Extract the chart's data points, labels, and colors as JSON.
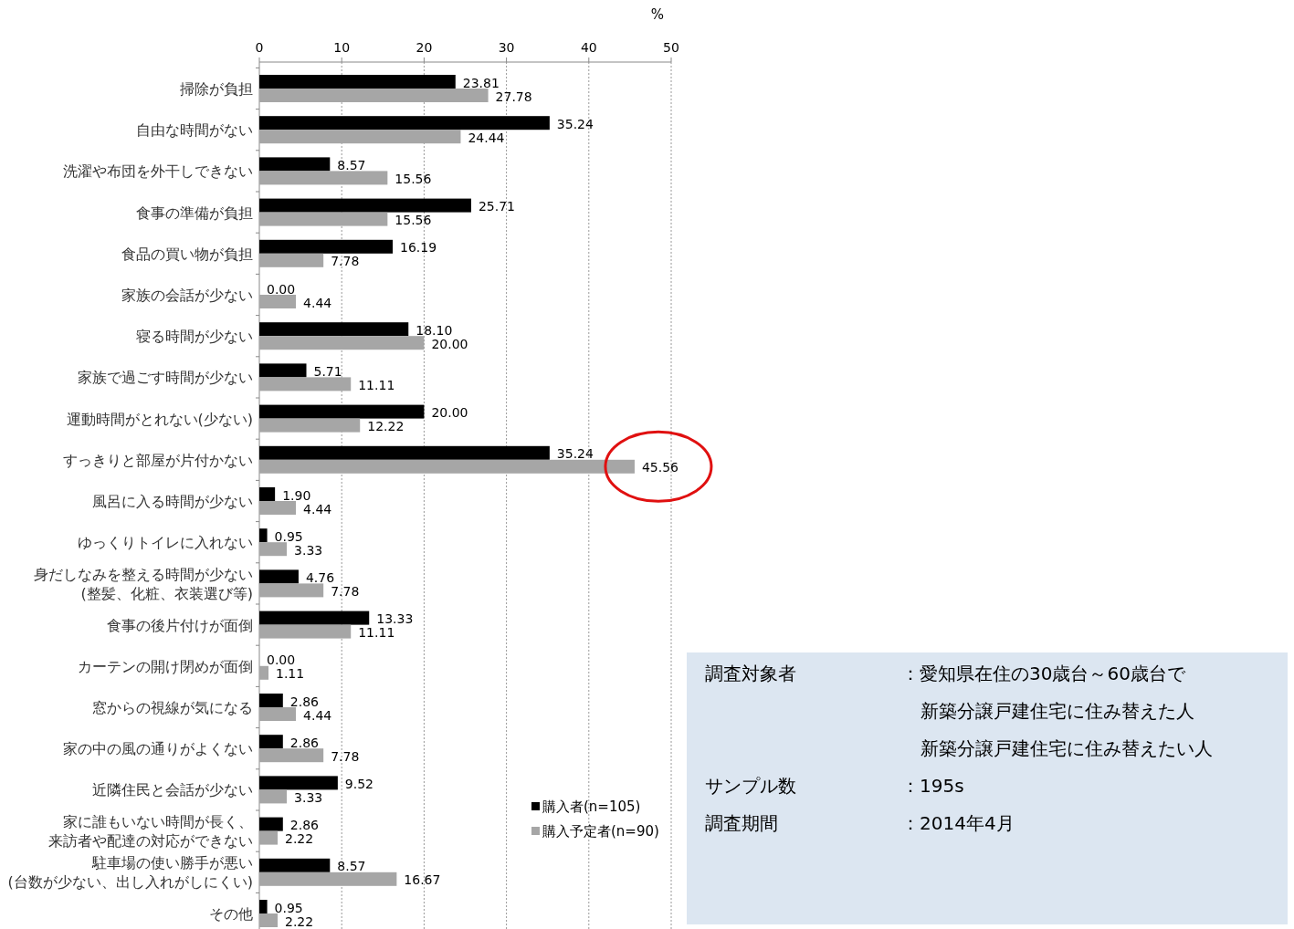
{
  "chart_data": {
    "type": "bar",
    "orientation": "horizontal",
    "xlabel": "%",
    "categories": [
      "掃除が負担",
      "自由な時間がない",
      "洗濯や布団を外干しできない",
      "食事の準備が負担",
      "食品の買い物が負担",
      "家族の会話が少ない",
      "寝る時間が少ない",
      "家族で過ごす時間が少ない",
      "運動時間がとれない(少ない)",
      "すっきりと部屋が片付かない",
      "風呂に入る時間が少ない",
      "ゆっくりトイレに入れない",
      "身だしなみを整える時間が少ない(整髪、化粧、衣装選び等)",
      "食事の後片付けが面倒",
      "カーテンの開け閉めが面倒",
      "窓からの視線が気になる",
      "家の中の風の通りがよくない",
      "近隣住民と会話が少ない",
      "家に誰もいない時間が長く、来訪者や配達の対応ができない",
      "駐車場の使い勝手が悪い(台数が少ない、出し入れがしにくい)",
      "その他"
    ],
    "series": [
      {
        "name": "購入者(n=105)",
        "color": "#000000",
        "values": [
          23.81,
          35.24,
          8.57,
          25.71,
          16.19,
          0.0,
          18.1,
          5.71,
          20.0,
          35.24,
          1.9,
          0.95,
          4.76,
          13.33,
          0.0,
          2.86,
          2.86,
          9.52,
          2.86,
          8.57,
          0.95
        ],
        "value_labels": [
          "23.81",
          "35.24",
          "8.57",
          "25.71",
          "16.19",
          "0.00",
          "18.10",
          "5.71",
          "20.00",
          "35.24",
          "1.90",
          "0.95",
          "4.76",
          "13.33",
          "0.00",
          "2.86",
          "2.86",
          "9.52",
          "2.86",
          "8.57",
          "0.95"
        ]
      },
      {
        "name": "購入予定者(n=90)",
        "color": "#a6a6a6",
        "values": [
          27.78,
          24.44,
          15.56,
          15.56,
          7.78,
          4.44,
          20.0,
          11.11,
          12.22,
          45.56,
          4.44,
          3.33,
          7.78,
          11.11,
          1.11,
          4.44,
          7.78,
          3.33,
          2.22,
          16.67,
          2.22
        ],
        "value_labels": [
          "27.78",
          "24.44",
          "15.56",
          "15.56",
          "7.78",
          "4.44",
          "20.00",
          "11.11",
          "12.22",
          "45.56",
          "4.44",
          "3.33",
          "7.78",
          "11.11",
          "1.11",
          "4.44",
          "7.78",
          "3.33",
          "2.22",
          "16.67",
          "2.22"
        ]
      }
    ],
    "xlim": [
      0,
      50
    ],
    "xticks": [
      0,
      10,
      20,
      30,
      40,
      50
    ],
    "grid": "x",
    "legend": "bottom right",
    "annotations": [
      "調査対象者",
      "：愛知県在住の30歳台～60歳台で",
      "新築分譲戸建住宅に住み替えた人",
      "新築分譲戸建住宅に住み替えたい人",
      "サンプル数",
      "：195s",
      "調査期間",
      "：2014年4月"
    ]
  }
}
